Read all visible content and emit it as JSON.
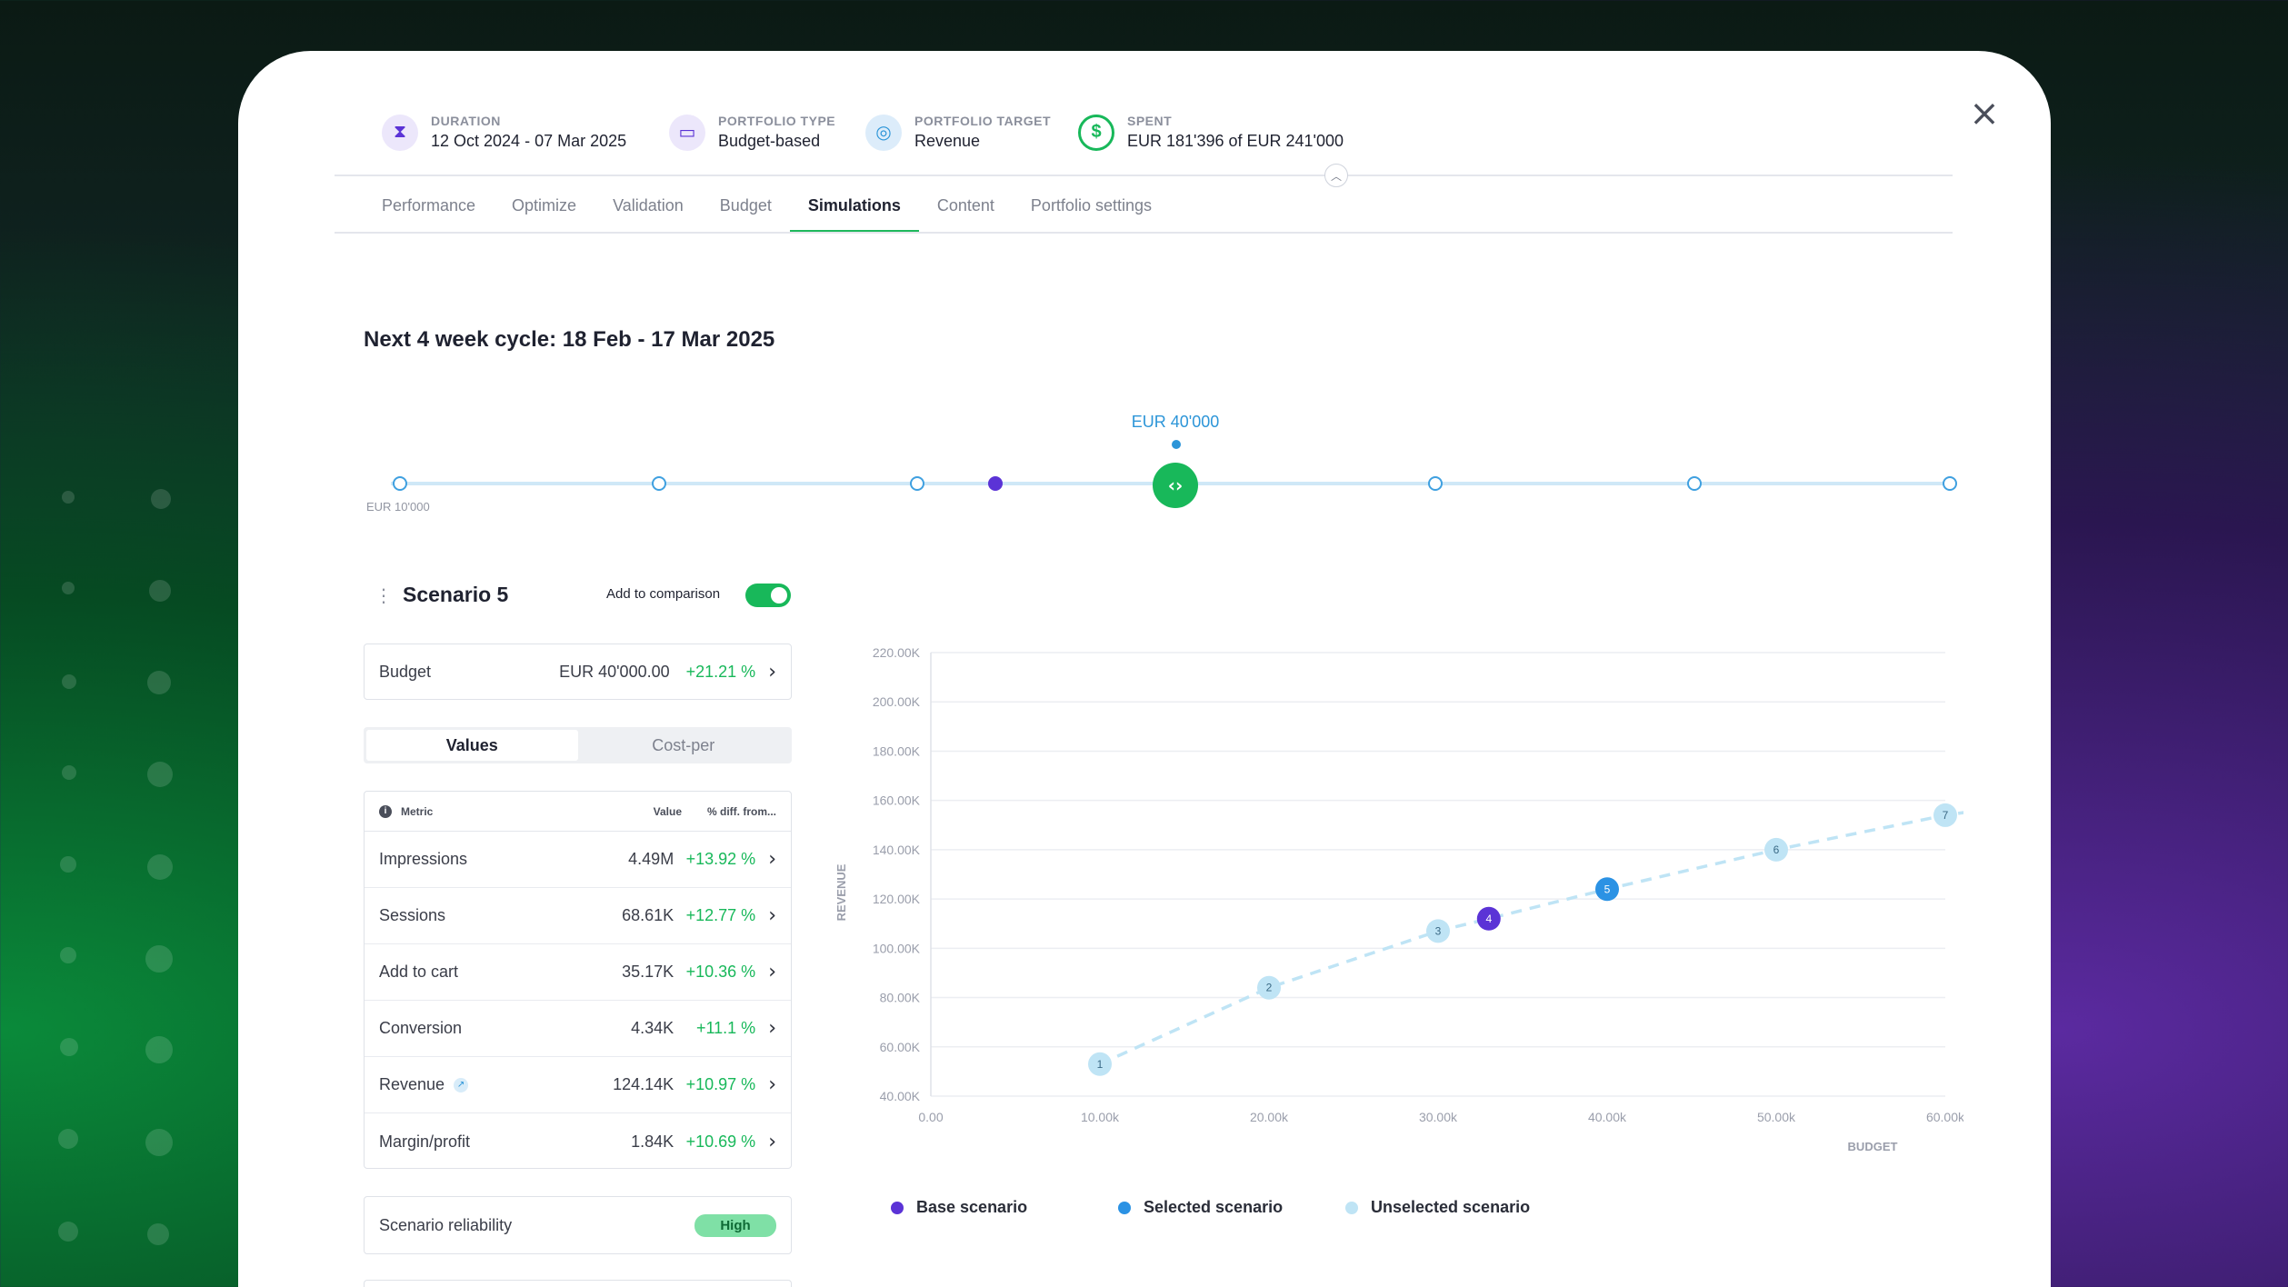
{
  "header": {
    "duration": {
      "label": "DURATION",
      "value": "12 Oct 2024 - 07 Mar 2025"
    },
    "portfolio_type": {
      "label": "PORTFOLIO TYPE",
      "value": "Budget-based"
    },
    "portfolio_target": {
      "label": "PORTFOLIO TARGET",
      "value": "Revenue"
    },
    "spent": {
      "label": "SPENT",
      "value": "EUR 181'396 of EUR 241'000"
    }
  },
  "tabs": [
    "Performance",
    "Optimize",
    "Validation",
    "Budget",
    "Simulations",
    "Content",
    "Portfolio settings"
  ],
  "active_tab": "Simulations",
  "cycle_title": "Next 4 week cycle: 18 Feb - 17 Mar 2025",
  "slider": {
    "selected_label": "EUR 40'000",
    "min_label": "EUR 10'000"
  },
  "scenario": {
    "title": "Scenario 5",
    "comparison_label": "Add to comparison",
    "comparison_on": true,
    "budget": {
      "label": "Budget",
      "value": "EUR 40'000.00",
      "diff": "+21.21 %"
    },
    "segments": [
      "Values",
      "Cost-per"
    ],
    "active_segment": "Values",
    "metrics_header": {
      "metric": "Metric",
      "value": "Value",
      "diff": "% diff. from..."
    },
    "metrics": [
      {
        "name": "Impressions",
        "value": "4.49M",
        "diff": "+13.92 %"
      },
      {
        "name": "Sessions",
        "value": "68.61K",
        "diff": "+12.77 %"
      },
      {
        "name": "Add to cart",
        "value": "35.17K",
        "diff": "+10.36 %"
      },
      {
        "name": "Conversion",
        "value": "4.34K",
        "diff": "+11.1 %"
      },
      {
        "name": "Revenue",
        "value": "124.14K",
        "diff": "+10.97 %"
      },
      {
        "name": "Margin/profit",
        "value": "1.84K",
        "diff": "+10.69 %"
      }
    ],
    "reliability": {
      "label": "Scenario reliability",
      "value": "High"
    }
  },
  "colors": {
    "accent_green": "#18b85a",
    "base": "#5b33d6",
    "selected": "#2b92e4",
    "unselected": "#bfe4f5"
  },
  "chart_data": {
    "type": "line",
    "xlabel": "BUDGET",
    "ylabel": "REVENUE",
    "x_ticks": [
      "0.00",
      "10.00k",
      "20.00k",
      "30.00k",
      "40.00k",
      "50.00k",
      "60.00k"
    ],
    "y_ticks": [
      "40.00K",
      "60.00K",
      "80.00K",
      "100.00K",
      "120.00K",
      "140.00K",
      "160.00K",
      "180.00K",
      "200.00K",
      "220.00K"
    ],
    "xlim": [
      0,
      60000
    ],
    "ylim": [
      40000,
      220000
    ],
    "points": [
      {
        "label": "1",
        "x": 10000,
        "y": 53000,
        "kind": "unselected"
      },
      {
        "label": "2",
        "x": 20000,
        "y": 84000,
        "kind": "unselected"
      },
      {
        "label": "3",
        "x": 30000,
        "y": 107000,
        "kind": "unselected"
      },
      {
        "label": "4",
        "x": 33000,
        "y": 112000,
        "kind": "base"
      },
      {
        "label": "5",
        "x": 40000,
        "y": 124000,
        "kind": "selected"
      },
      {
        "label": "6",
        "x": 50000,
        "y": 140000,
        "kind": "unselected"
      },
      {
        "label": "7",
        "x": 60000,
        "y": 154000,
        "kind": "unselected"
      }
    ],
    "legend": [
      {
        "name": "Base scenario",
        "kind": "base"
      },
      {
        "name": "Selected scenario",
        "kind": "selected"
      },
      {
        "name": "Unselected scenario",
        "kind": "unselected"
      }
    ]
  }
}
